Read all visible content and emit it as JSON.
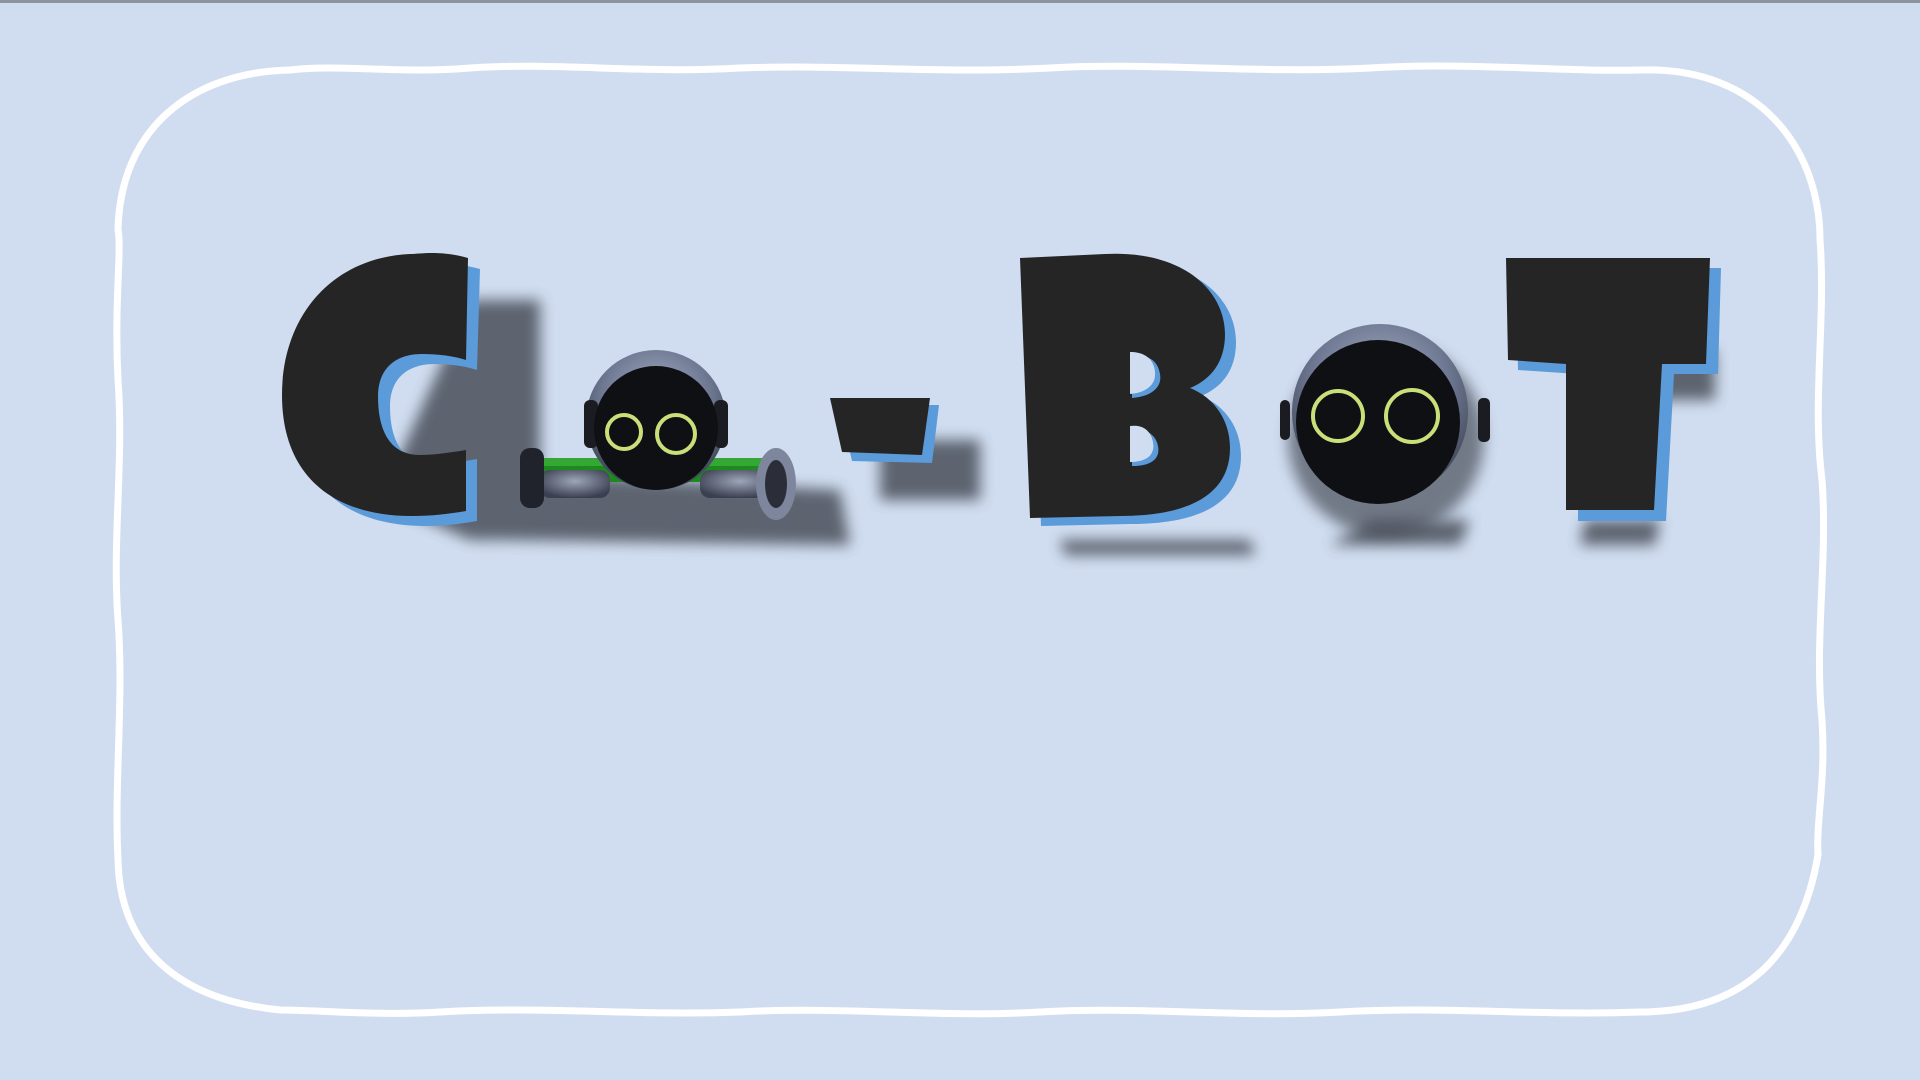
{
  "title": {
    "text": "Co-BoT",
    "letters": [
      "C",
      "o",
      "-",
      "B",
      "o",
      "T"
    ]
  },
  "colors": {
    "background": "#d0ddf0",
    "frame": "#ffffff",
    "letter_fill": "#252525",
    "letter_outline": "#5b9bd9",
    "robot_eye": "#c9e07a",
    "robot_axle": "#1d8a1d"
  }
}
